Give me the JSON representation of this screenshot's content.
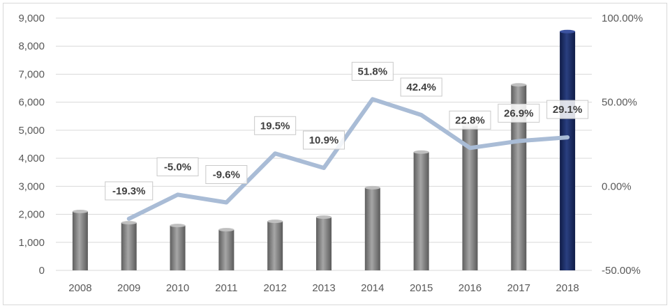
{
  "chart_data": {
    "type": "bar",
    "categories": [
      "2008",
      "2009",
      "2010",
      "2011",
      "2012",
      "2013",
      "2014",
      "2015",
      "2016",
      "2017",
      "2018"
    ],
    "series": [
      {
        "type": "bar",
        "values": [
          2100,
          1700,
          1600,
          1450,
          1750,
          1900,
          2950,
          4220,
          5180,
          6620,
          8520
        ],
        "color": "#808080",
        "highlight_color": "#1a2b5f",
        "highlight_index": 10,
        "axis": "left"
      },
      {
        "type": "line",
        "values": [
          null,
          -19.3,
          -5.0,
          -9.6,
          19.5,
          10.9,
          51.8,
          42.4,
          22.8,
          26.9,
          29.1
        ],
        "labels": [
          "",
          "-19.3%",
          "-5.0%",
          "-9.6%",
          "19.5%",
          "10.9%",
          "51.8%",
          "42.4%",
          "22.8%",
          "26.9%",
          "29.1%"
        ],
        "color": "#a9bcd6",
        "axis": "right"
      }
    ],
    "y_left": {
      "range": [
        0,
        9000
      ],
      "ticks": [
        0,
        1000,
        2000,
        3000,
        4000,
        5000,
        6000,
        7000,
        8000,
        9000
      ],
      "tick_labels": [
        "0",
        "1,000",
        "2,000",
        "3,000",
        "4,000",
        "5,000",
        "6,000",
        "7,000",
        "8,000",
        "9,000"
      ]
    },
    "y_right": {
      "range": [
        -50,
        100
      ],
      "ticks": [
        -50,
        0,
        50,
        100
      ],
      "tick_labels": [
        "-50.00%",
        "0.00%",
        "50.00%",
        "100.00%"
      ]
    },
    "grid": true,
    "legend": "none"
  }
}
